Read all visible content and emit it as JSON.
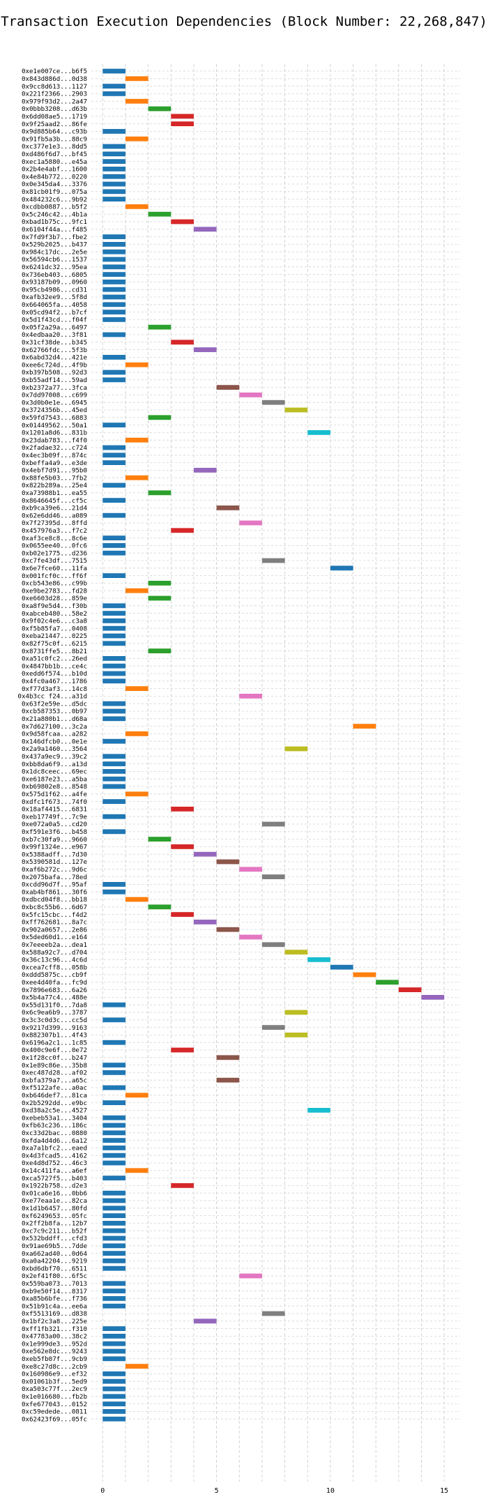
{
  "chart_data": {
    "type": "bar",
    "orientation": "horizontal",
    "title": "Transaction Execution Dependencies (Block Number: 22,268,847)",
    "xlabel": "",
    "ylabel": "",
    "xlim": [
      -0.5,
      15.7
    ],
    "xticks": [
      0,
      5,
      10,
      15
    ],
    "grid": "x",
    "colors": [
      "#1f77b4",
      "#ff7f0e",
      "#2ca02c",
      "#d62728",
      "#9467bd",
      "#8c564b",
      "#e377c2",
      "#7f7f7f",
      "#bcbd22",
      "#17becf"
    ],
    "transactions": [
      {
        "tx": "0xe1e007ce...b6f5",
        "start": 0
      },
      {
        "tx": "0x843d886d...0d38",
        "start": 1
      },
      {
        "tx": "0x9cc8d613...1127",
        "start": 0
      },
      {
        "tx": "0x221f2366...2903",
        "start": 0
      },
      {
        "tx": "0x979f93d2...2a47",
        "start": 1
      },
      {
        "tx": "0x0bbb3208...d63b",
        "start": 2
      },
      {
        "tx": "0x6dd08ae5...1719",
        "start": 3
      },
      {
        "tx": "0x9f25aad2...86fe",
        "start": 3
      },
      {
        "tx": "0x9d885b64...c93b",
        "start": 0
      },
      {
        "tx": "0x91fb5a3b...88c9",
        "start": 1
      },
      {
        "tx": "0xc377e1e3...8dd5",
        "start": 0
      },
      {
        "tx": "0xd486f6d7...bf45",
        "start": 0
      },
      {
        "tx": "0xec1a5880...e45a",
        "start": 0
      },
      {
        "tx": "0x2b4e4abf...1600",
        "start": 0
      },
      {
        "tx": "0x4e84b772...0220",
        "start": 0
      },
      {
        "tx": "0x0e345da4...3376",
        "start": 0
      },
      {
        "tx": "0x81cb01f9...075a",
        "start": 0
      },
      {
        "tx": "0x484232c6...9b92",
        "start": 0
      },
      {
        "tx": "0xcdbb0887...b5f2",
        "start": 1
      },
      {
        "tx": "0x5c246c42...4b1a",
        "start": 2
      },
      {
        "tx": "0xbad1b75c...9fc1",
        "start": 3
      },
      {
        "tx": "0x6104f44a...f485",
        "start": 4
      },
      {
        "tx": "0x7fd9f3b7...fbe2",
        "start": 0
      },
      {
        "tx": "0x529b2025...b437",
        "start": 0
      },
      {
        "tx": "0x984c17dc...2e5e",
        "start": 0
      },
      {
        "tx": "0x56594cb6...1537",
        "start": 0
      },
      {
        "tx": "0x6241dc32...95ea",
        "start": 0
      },
      {
        "tx": "0x736eb403...6805",
        "start": 0
      },
      {
        "tx": "0x93187b09...0960",
        "start": 0
      },
      {
        "tx": "0x95cb4986...cd31",
        "start": 0
      },
      {
        "tx": "0xafb32ee9...5f8d",
        "start": 0
      },
      {
        "tx": "0x664065fa...4058",
        "start": 0
      },
      {
        "tx": "0x05cd94f2...b7cf",
        "start": 0
      },
      {
        "tx": "0x5d1f43cd...f04f",
        "start": 0
      },
      {
        "tx": "0x05f2a29a...6497",
        "start": 2
      },
      {
        "tx": "0x4edbaa20...3f81",
        "start": 0
      },
      {
        "tx": "0x31cf38de...b345",
        "start": 3
      },
      {
        "tx": "0x62766fdc...5f3b",
        "start": 4
      },
      {
        "tx": "0x6abd32d4...421e",
        "start": 0
      },
      {
        "tx": "0xee6c724d...4f9b",
        "start": 1
      },
      {
        "tx": "0xb397b508...92d3",
        "start": 0
      },
      {
        "tx": "0xb55adf14...59ad",
        "start": 0
      },
      {
        "tx": "0xb2372a77...3fca",
        "start": 5
      },
      {
        "tx": "0x7dd97008...c699",
        "start": 6
      },
      {
        "tx": "0x3d0b0e1e...6945",
        "start": 7
      },
      {
        "tx": "0x3724356b...45ed",
        "start": 8
      },
      {
        "tx": "0x59fd7543...6883",
        "start": 2
      },
      {
        "tx": "0x01449562...50a1",
        "start": 0
      },
      {
        "tx": "0x1201a8d6...831b",
        "start": 9
      },
      {
        "tx": "0x23dab783...f4f0",
        "start": 1
      },
      {
        "tx": "0x2fadae32...c724",
        "start": 0
      },
      {
        "tx": "0x4ec3b09f...874c",
        "start": 0
      },
      {
        "tx": "0xbeffa4a9...e3de",
        "start": 0
      },
      {
        "tx": "0x4ebf7d91...95b0",
        "start": 4
      },
      {
        "tx": "0x88fe5b03...7fb2",
        "start": 1
      },
      {
        "tx": "0x822b289a...25e4",
        "start": 0
      },
      {
        "tx": "0xa73988b1...ea55",
        "start": 2
      },
      {
        "tx": "0x8646645f...cf5c",
        "start": 0
      },
      {
        "tx": "0xb9ca39e6...21d4",
        "start": 5
      },
      {
        "tx": "0x62e6dd46...a089",
        "start": 0
      },
      {
        "tx": "0x7f27395d...8ffd",
        "start": 6
      },
      {
        "tx": "0x457976a3...f7c2",
        "start": 3
      },
      {
        "tx": "0xaf3ce8c8...8c6e",
        "start": 0
      },
      {
        "tx": "0x0655ee40...0fc6",
        "start": 0
      },
      {
        "tx": "0xb02e1775...d236",
        "start": 0
      },
      {
        "tx": "0xc7fe43df...7515",
        "start": 7
      },
      {
        "tx": "0x6e7fce60...11fa",
        "start": 10
      },
      {
        "tx": "0x001fcf0c...ff6f",
        "start": 0
      },
      {
        "tx": "0xcb543e86...c99b",
        "start": 2
      },
      {
        "tx": "0xe9be2783...fd28",
        "start": 1
      },
      {
        "tx": "0xe6603d28...859e",
        "start": 2
      },
      {
        "tx": "0xa8f9e5d4...f30b",
        "start": 0
      },
      {
        "tx": "0xabceb480...58e2",
        "start": 0
      },
      {
        "tx": "0x9f02c4e6...c3a8",
        "start": 0
      },
      {
        "tx": "0xf5b85fa7...0408",
        "start": 0
      },
      {
        "tx": "0xeba21447...0225",
        "start": 0
      },
      {
        "tx": "0x82f75c0f...6215",
        "start": 0
      },
      {
        "tx": "0x8731ffe5...8b21",
        "start": 2
      },
      {
        "tx": "0xa51c0fc2...26ed",
        "start": 0
      },
      {
        "tx": "0x4847bb1b...ce4c",
        "start": 0
      },
      {
        "tx": "0xedd6f574...b10d",
        "start": 0
      },
      {
        "tx": "0x4fc0a467...1786",
        "start": 0
      },
      {
        "tx": "0xf77d3af3...14c8",
        "start": 1
      },
      {
        "tx": "0x4b3cc f24...a31d",
        "start": 6
      },
      {
        "tx": "0x63f2e59e...d5dc",
        "start": 0
      },
      {
        "tx": "0xcb587353...0b97",
        "start": 0
      },
      {
        "tx": "0x21a880b1...d68a",
        "start": 0
      },
      {
        "tx": "0x7d627100...3c2a",
        "start": 11
      },
      {
        "tx": "0x9d58fcaa...a282",
        "start": 1
      },
      {
        "tx": "0x146dfcb0...0e1e",
        "start": 0
      },
      {
        "tx": "0x2a9a1460...3564",
        "start": 8
      },
      {
        "tx": "0x437a9ec9...39c2",
        "start": 0
      },
      {
        "tx": "0xbb8da6f9...a13d",
        "start": 0
      },
      {
        "tx": "0x1dc8ceec...69ec",
        "start": 0
      },
      {
        "tx": "0xe6187e23...a5ba",
        "start": 0
      },
      {
        "tx": "0xb69802e8...8548",
        "start": 0
      },
      {
        "tx": "0x575d1f62...a4fe",
        "start": 1
      },
      {
        "tx": "0xdfc1f673...74f0",
        "start": 0
      },
      {
        "tx": "0x18af4415...6831",
        "start": 3
      },
      {
        "tx": "0xeb17749f...7c9e",
        "start": 0
      },
      {
        "tx": "0xe072a0a5...cd20",
        "start": 7
      },
      {
        "tx": "0xf591e3f6...b458",
        "start": 0
      },
      {
        "tx": "0xb7c30fa9...9660",
        "start": 2
      },
      {
        "tx": "0x99f1324e...e967",
        "start": 3
      },
      {
        "tx": "0x5388adff...7d30",
        "start": 4
      },
      {
        "tx": "0x5390581d...127e",
        "start": 5
      },
      {
        "tx": "0xaf6b272c...9d6c",
        "start": 6
      },
      {
        "tx": "0x2075bafa...78ed",
        "start": 7
      },
      {
        "tx": "0xcdd96d7f...95af",
        "start": 0
      },
      {
        "tx": "0xab4bf861...30f6",
        "start": 0
      },
      {
        "tx": "0xdbcd04f8...bb18",
        "start": 1
      },
      {
        "tx": "0xbc8c55b6...6d67",
        "start": 2
      },
      {
        "tx": "0x5fc15cbc...f4d2",
        "start": 3
      },
      {
        "tx": "0xff762681...8a7c",
        "start": 4
      },
      {
        "tx": "0x902a0657...2e86",
        "start": 5
      },
      {
        "tx": "0x5ded60d1...e164",
        "start": 6
      },
      {
        "tx": "0x7eeeeb2a...dea1",
        "start": 7
      },
      {
        "tx": "0x588a92c7...d704",
        "start": 8
      },
      {
        "tx": "0x36c13c96...4c6d",
        "start": 9
      },
      {
        "tx": "0xcea7cff8...058b",
        "start": 10
      },
      {
        "tx": "0xddd5875c...cb9f",
        "start": 11
      },
      {
        "tx": "0xee4d40fa...fc9d",
        "start": 12
      },
      {
        "tx": "0x7896e683...6a26",
        "start": 13
      },
      {
        "tx": "0x5b4a77c4...488e",
        "start": 14
      },
      {
        "tx": "0x55d131f0...7da8",
        "start": 0
      },
      {
        "tx": "0x6c9ea6b9...3787",
        "start": 8
      },
      {
        "tx": "0x3c3c0d3c...cc5d",
        "start": 0
      },
      {
        "tx": "0x9217d399...9163",
        "start": 7
      },
      {
        "tx": "0x882307b1...4f43",
        "start": 8
      },
      {
        "tx": "0x6196a2c1...1c85",
        "start": 0
      },
      {
        "tx": "0x400c9e6f...0e72",
        "start": 3
      },
      {
        "tx": "0x1f28cc0f...b247",
        "start": 5
      },
      {
        "tx": "0x1e89c86e...35b8",
        "start": 0
      },
      {
        "tx": "0xec487d28...af02",
        "start": 0
      },
      {
        "tx": "0xbfa379a7...a65c",
        "start": 5
      },
      {
        "tx": "0xf5122afe...a0ac",
        "start": 0
      },
      {
        "tx": "0xb646def7...81ca",
        "start": 1
      },
      {
        "tx": "0x2b5292dd...e9bc",
        "start": 0
      },
      {
        "tx": "0xd38a2c5e...4527",
        "start": 9
      },
      {
        "tx": "0xebeb53a1...3404",
        "start": 0
      },
      {
        "tx": "0xfb63c236...186c",
        "start": 0
      },
      {
        "tx": "0xc33d2bac...0880",
        "start": 0
      },
      {
        "tx": "0xfda4d4d6...6a12",
        "start": 0
      },
      {
        "tx": "0xa7a1bfc2...eaed",
        "start": 0
      },
      {
        "tx": "0x4d3fcad5...4162",
        "start": 0
      },
      {
        "tx": "0xe4d8d752...46c3",
        "start": 0
      },
      {
        "tx": "0x14c411fa...a6ef",
        "start": 1
      },
      {
        "tx": "0xca5727f5...b403",
        "start": 0
      },
      {
        "tx": "0x1922b758...d2e3",
        "start": 3
      },
      {
        "tx": "0x01ca6e16...0bb6",
        "start": 0
      },
      {
        "tx": "0xe77eaa1e...82ca",
        "start": 0
      },
      {
        "tx": "0x1d1b6457...80fd",
        "start": 0
      },
      {
        "tx": "0xf6249653...05fc",
        "start": 0
      },
      {
        "tx": "0x2ff2b8fa...12b7",
        "start": 0
      },
      {
        "tx": "0xc7c9c211...b52f",
        "start": 0
      },
      {
        "tx": "0x532bddff...cfd3",
        "start": 0
      },
      {
        "tx": "0x91ae69b5...7dde",
        "start": 0
      },
      {
        "tx": "0xa662ad40...0d64",
        "start": 0
      },
      {
        "tx": "0xa0a42204...9219",
        "start": 0
      },
      {
        "tx": "0xbd6dbf70...6511",
        "start": 0
      },
      {
        "tx": "0x2ef41f80...6f5c",
        "start": 6
      },
      {
        "tx": "0x559ba073...7013",
        "start": 0
      },
      {
        "tx": "0xb9e50f14...8317",
        "start": 0
      },
      {
        "tx": "0xa85b6bfe...f736",
        "start": 0
      },
      {
        "tx": "0x51b91c4a...ee6a",
        "start": 0
      },
      {
        "tx": "0xf5513169...d838",
        "start": 7
      },
      {
        "tx": "0x1bf2c3a8...225e",
        "start": 4
      },
      {
        "tx": "0xff1fb321...f310",
        "start": 0
      },
      {
        "tx": "0x47783a00...38c2",
        "start": 0
      },
      {
        "tx": "0x1e999de3...952d",
        "start": 0
      },
      {
        "tx": "0xe562e8dc...9243",
        "start": 0
      },
      {
        "tx": "0xeb5fb07f...9cb9",
        "start": 0
      },
      {
        "tx": "0xe8c27d8c...2cb9",
        "start": 1
      },
      {
        "tx": "0x160986e9...ef32",
        "start": 0
      },
      {
        "tx": "0x01061b3f...5ed9",
        "start": 0
      },
      {
        "tx": "0xa503c77f...2ec9",
        "start": 0
      },
      {
        "tx": "0x1e016680...fb2b",
        "start": 0
      },
      {
        "tx": "0xfe677043...0152",
        "start": 0
      },
      {
        "tx": "0xc59edede...0811",
        "start": 0
      },
      {
        "tx": "0x62423f69...05fc",
        "start": 0
      }
    ]
  }
}
